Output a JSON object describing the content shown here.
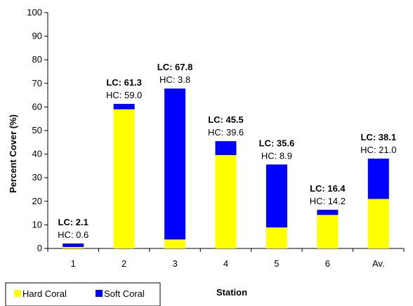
{
  "chart_data": {
    "type": "bar",
    "stacked": true,
    "categories": [
      "1",
      "2",
      "3",
      "4",
      "5",
      "6",
      "Av."
    ],
    "series": [
      {
        "name": "Hard Coral",
        "color": "#ffff00",
        "values": [
          0.6,
          59.0,
          3.8,
          39.6,
          8.9,
          14.2,
          21.0
        ]
      },
      {
        "name": "Soft Coral",
        "color": "#0000ff",
        "values": [
          1.5,
          2.3,
          64.0,
          5.9,
          26.7,
          2.2,
          17.1
        ]
      }
    ],
    "annotations": [
      {
        "lc": "LC: 2.1",
        "hc": "HC: 0.6"
      },
      {
        "lc": "LC: 61.3",
        "hc": "HC: 59.0"
      },
      {
        "lc": "LC: 67.8",
        "hc": "HC: 3.8"
      },
      {
        "lc": "LC: 45.5",
        "hc": "HC: 39.6"
      },
      {
        "lc": "LC: 35.6",
        "hc": "HC: 8.9"
      },
      {
        "lc": "LC: 16.4",
        "hc": "HC: 14.2"
      },
      {
        "lc": "LC: 38.1",
        "hc": "HC: 21.0"
      }
    ],
    "xlabel": "Station",
    "ylabel": "Percent Cover (%)",
    "ylim": [
      0,
      100
    ],
    "yticks": [
      0,
      10,
      20,
      30,
      40,
      50,
      60,
      70,
      80,
      90,
      100
    ],
    "grid": false,
    "legend_position": "bottom-left"
  }
}
